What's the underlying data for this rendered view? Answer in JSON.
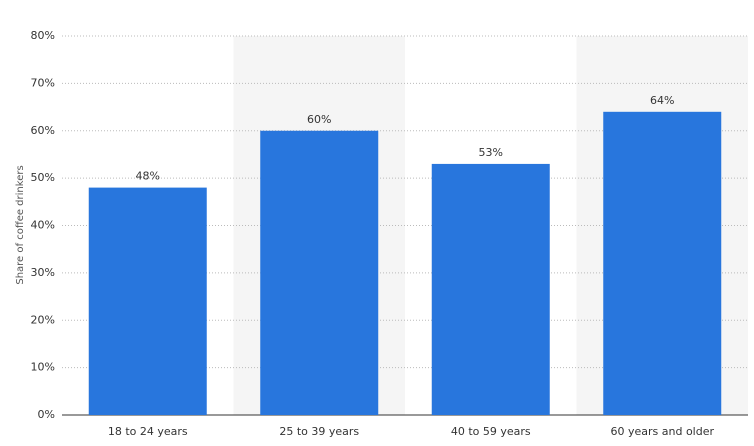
{
  "chart_data": {
    "type": "bar",
    "y_label": "Share of coffee drinkers",
    "categories": [
      "18 to 24 years",
      "25 to 39 years",
      "40 to 59 years",
      "60 years and older"
    ],
    "values": [
      48,
      60,
      53,
      64
    ],
    "value_labels": [
      "48%",
      "60%",
      "53%",
      "64%"
    ],
    "color": "#2876dd",
    "ylim": [
      0,
      80
    ],
    "yticks": [
      {
        "value": 0,
        "label": "0%"
      },
      {
        "value": 10,
        "label": "10%"
      },
      {
        "value": 20,
        "label": "20%"
      },
      {
        "value": 30,
        "label": "30%"
      },
      {
        "value": 40,
        "label": "40%"
      },
      {
        "value": 50,
        "label": "50%"
      },
      {
        "value": 60,
        "label": "60%"
      },
      {
        "value": 70,
        "label": "70%"
      },
      {
        "value": 80,
        "label": "80%"
      }
    ],
    "grid": true
  }
}
